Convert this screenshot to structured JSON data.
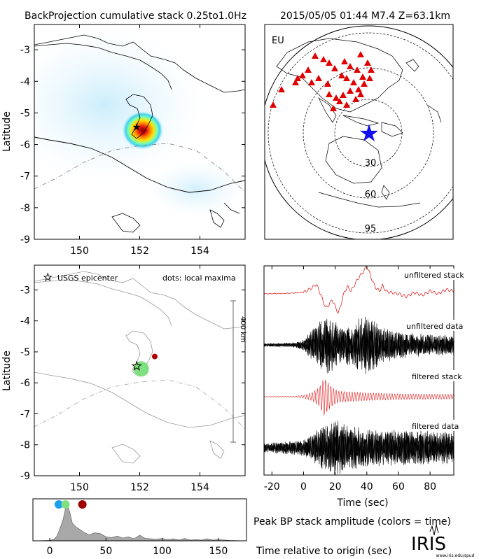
{
  "header": {
    "left_title": "BackProjection cumulative stack 0.25to1.0Hz",
    "right_title": "2015/05/05 01:44   M7.4   Z=63.1km"
  },
  "panels": {
    "map_top": {
      "ylabel": "Latitude"
    },
    "map_bottom": {
      "ylabel": "Latitude",
      "legend_star": "USGS epicenter",
      "legend_dots": "dots: local maxima",
      "scale_label": "400 km"
    },
    "globe": {
      "region": "EU",
      "ring_labels": [
        "30",
        "60",
        "95"
      ]
    },
    "traces": {
      "labels": [
        "unfiltered stack",
        "unfiltered data",
        "filtered stack",
        "filtered data"
      ],
      "xlabel": "Time (sec)"
    },
    "peak": {
      "title": "Peak BP stack amplitude (colors = time)",
      "xlabel": "Time relative to origin (sec)"
    }
  },
  "logo": {
    "text": "IRIS",
    "url_text": "www.iris.edu/spud"
  },
  "colors": {
    "stack_trace": "#e02020",
    "data_trace": "#000000",
    "station_marker": "#e00000",
    "epicenter_globe": "#1010ee",
    "peak_fill": "#a8a8a8"
  },
  "chart_data": [
    {
      "type": "heatmap",
      "name": "backprojection-cumulative-stack",
      "xlim": [
        148.5,
        155.5
      ],
      "ylim": [
        -9,
        -2.2
      ],
      "xticks": [
        150,
        152,
        154
      ],
      "yticks": [
        -3,
        -4,
        -5,
        -6,
        -7,
        -8,
        -9
      ],
      "ylabel": "Latitude",
      "peak": {
        "lon": 152.1,
        "lat": -5.55
      },
      "epicenter": {
        "lon": 151.9,
        "lat": -5.45
      }
    },
    {
      "type": "scatter",
      "name": "local-maxima",
      "xlim": [
        148.5,
        155.5
      ],
      "ylim": [
        -9,
        -2.2
      ],
      "xticks": [
        150,
        152,
        154
      ],
      "yticks": [
        -3,
        -4,
        -5,
        -6,
        -7,
        -8,
        -9
      ],
      "ylabel": "Latitude",
      "epicenter": {
        "lon": 151.9,
        "lat": -5.45
      },
      "points": [
        {
          "lon": 152.05,
          "lat": -5.55,
          "time": 14,
          "color": "#7fe07f"
        },
        {
          "lon": 152.5,
          "lat": -5.15,
          "time": 30,
          "color": "#b00000"
        }
      ]
    },
    {
      "type": "line",
      "name": "seismic-traces",
      "xlim": [
        -25,
        95
      ],
      "xticks": [
        -20,
        0,
        20,
        40,
        60,
        80
      ],
      "xlabel": "Time (sec)",
      "series": [
        {
          "name": "unfiltered stack",
          "kind": "stack",
          "x": [
            -25,
            -10,
            0,
            5,
            8,
            10,
            12,
            14,
            16,
            18,
            20,
            22,
            24,
            26,
            28,
            30,
            32,
            35,
            38,
            40,
            42,
            44,
            46,
            48,
            50,
            52,
            55,
            60,
            65,
            70,
            75,
            80,
            85,
            90,
            95
          ],
          "y": [
            0,
            0.02,
            0.05,
            0.2,
            0.35,
            0.1,
            -0.2,
            -0.5,
            -0.4,
            -0.2,
            -0.45,
            -0.7,
            -0.3,
            0.1,
            0.25,
            0.1,
            0.3,
            0.6,
            0.8,
            1.0,
            0.7,
            0.4,
            0.2,
            0.1,
            0.3,
            0.1,
            0.05,
            0,
            -0.1,
            0.05,
            -0.05,
            0.1,
            0,
            0.15,
            0.1
          ]
        },
        {
          "name": "unfiltered data",
          "kind": "data",
          "amp_x": [
            -25,
            -5,
            0,
            5,
            10,
            15,
            20,
            25,
            30,
            35,
            40,
            45,
            50,
            60,
            70,
            80,
            95
          ],
          "amp_y": [
            0.05,
            0.08,
            0.2,
            0.5,
            0.8,
            1.0,
            0.8,
            0.6,
            0.7,
            0.9,
            1.0,
            0.8,
            0.6,
            0.45,
            0.4,
            0.35,
            0.35
          ]
        },
        {
          "name": "filtered stack",
          "kind": "stack",
          "amp_x": [
            -25,
            -5,
            0,
            5,
            10,
            13,
            15,
            18,
            22,
            30,
            40,
            60,
            95
          ],
          "amp_y": [
            0.02,
            0.03,
            0.08,
            0.2,
            0.5,
            1.0,
            0.8,
            0.5,
            0.3,
            0.25,
            0.2,
            0.15,
            0.12
          ]
        },
        {
          "name": "filtered data",
          "kind": "data",
          "amp_x": [
            -25,
            0,
            5,
            10,
            15,
            20,
            30,
            40,
            60,
            80,
            95
          ],
          "amp_y": [
            0.15,
            0.25,
            0.4,
            0.6,
            0.8,
            0.9,
            0.7,
            0.6,
            0.55,
            0.55,
            0.5
          ]
        }
      ]
    },
    {
      "type": "area",
      "name": "peak-bp-stack-amplitude",
      "xlim": [
        -15,
        175
      ],
      "xticks": [
        0,
        50,
        100,
        150
      ],
      "xlabel": "Time relative to origin (sec)",
      "x": [
        -15,
        0,
        3,
        6,
        9,
        12,
        15,
        18,
        20,
        23,
        26,
        30,
        35,
        40,
        45,
        50,
        55,
        60,
        65,
        70,
        75,
        80,
        85,
        90,
        95,
        100,
        105,
        110,
        115,
        120,
        125,
        130,
        135,
        140,
        145,
        150,
        160,
        175
      ],
      "y": [
        0,
        0.01,
        0.03,
        0.1,
        0.3,
        0.55,
        0.95,
        0.7,
        0.45,
        0.35,
        0.3,
        0.22,
        0.15,
        0.2,
        0.18,
        0.1,
        0.08,
        0.12,
        0.07,
        0.1,
        0.05,
        0.14,
        0.06,
        0.05,
        0.04,
        0.06,
        0.03,
        0.05,
        0.02,
        0.06,
        0.02,
        0.03,
        0.02,
        0.05,
        0.02,
        0.03,
        0.01,
        0
      ],
      "peak_markers": [
        {
          "time": 8,
          "color": "#1aa0ee"
        },
        {
          "time": 14,
          "color": "#7fe07f"
        },
        {
          "time": 29,
          "color": "#a00000"
        }
      ]
    }
  ]
}
